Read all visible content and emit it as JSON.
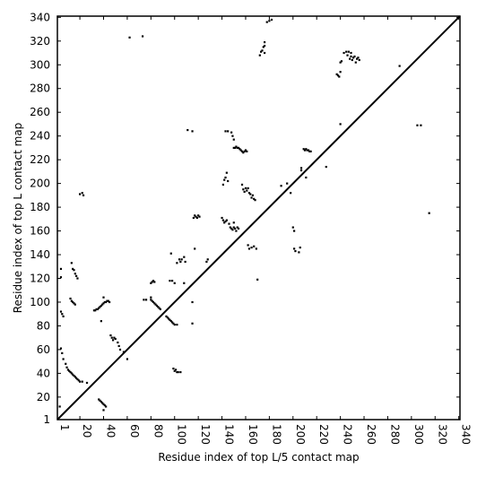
{
  "chart_data": {
    "type": "scatter",
    "title": "",
    "xlabel": "Residue index of top L/5 contact map",
    "ylabel": "Residue index of top L contact map",
    "xlim": [
      1,
      341
    ],
    "ylim": [
      1,
      341
    ],
    "x_ticks": [
      1,
      20,
      40,
      60,
      80,
      100,
      120,
      140,
      160,
      180,
      200,
      220,
      240,
      260,
      280,
      300,
      320,
      340
    ],
    "y_ticks": [
      1,
      20,
      40,
      60,
      80,
      100,
      120,
      140,
      160,
      180,
      200,
      220,
      240,
      260,
      280,
      300,
      320,
      340
    ],
    "diagonal": {
      "from": [
        1,
        1
      ],
      "to": [
        341,
        341
      ],
      "color": "#000000"
    },
    "marker_color": "#000000",
    "grid": false,
    "legend": "none",
    "series": [
      {
        "points": [
          [
            4,
            128
          ],
          [
            4,
            121
          ],
          [
            4,
            92
          ],
          [
            5,
            90
          ],
          [
            6,
            88
          ],
          [
            4,
            61
          ],
          [
            5,
            57
          ],
          [
            6,
            52
          ],
          [
            8,
            48
          ],
          [
            9,
            45
          ],
          [
            10,
            43
          ],
          [
            11,
            42
          ],
          [
            12,
            41
          ],
          [
            13,
            40
          ],
          [
            14,
            39
          ],
          [
            15,
            38
          ],
          [
            16,
            37
          ],
          [
            17,
            36
          ],
          [
            18,
            35
          ],
          [
            19,
            34
          ],
          [
            20,
            33
          ],
          [
            22,
            33
          ],
          [
            26,
            32
          ],
          [
            3,
            12
          ],
          [
            13,
            133
          ],
          [
            14,
            128
          ],
          [
            15,
            127
          ],
          [
            16,
            124
          ],
          [
            17,
            122
          ],
          [
            18,
            120
          ],
          [
            12,
            103
          ],
          [
            13,
            101
          ],
          [
            14,
            100
          ],
          [
            15,
            99
          ],
          [
            16,
            98
          ],
          [
            20,
            191
          ],
          [
            22,
            192
          ],
          [
            23,
            190
          ],
          [
            32,
            93
          ],
          [
            33,
            93
          ],
          [
            34,
            94
          ],
          [
            35,
            94
          ],
          [
            36,
            95
          ],
          [
            37,
            96
          ],
          [
            38,
            97
          ],
          [
            39,
            98
          ],
          [
            40,
            99
          ],
          [
            41,
            100
          ],
          [
            42,
            100
          ],
          [
            43,
            101
          ],
          [
            44,
            101
          ],
          [
            45,
            100
          ],
          [
            40,
            104
          ],
          [
            38,
            84
          ],
          [
            36,
            18
          ],
          [
            37,
            17
          ],
          [
            38,
            16
          ],
          [
            39,
            15
          ],
          [
            40,
            14
          ],
          [
            41,
            13
          ],
          [
            42,
            12
          ],
          [
            40,
            9
          ],
          [
            46,
            72
          ],
          [
            47,
            70
          ],
          [
            48,
            68
          ],
          [
            49,
            70
          ],
          [
            50,
            69
          ],
          [
            52,
            66
          ],
          [
            53,
            63
          ],
          [
            54,
            60
          ],
          [
            57,
            58
          ],
          [
            60,
            52
          ],
          [
            62,
            323
          ],
          [
            73,
            324
          ],
          [
            80,
            116
          ],
          [
            81,
            117
          ],
          [
            82,
            118
          ],
          [
            83,
            117
          ],
          [
            80,
            104
          ],
          [
            80,
            102
          ],
          [
            81,
            101
          ],
          [
            82,
            100
          ],
          [
            83,
            99
          ],
          [
            84,
            98
          ],
          [
            85,
            97
          ],
          [
            86,
            96
          ],
          [
            87,
            95
          ],
          [
            88,
            94
          ],
          [
            74,
            102
          ],
          [
            76,
            102
          ],
          [
            93,
            88
          ],
          [
            94,
            87
          ],
          [
            95,
            86
          ],
          [
            96,
            85
          ],
          [
            97,
            84
          ],
          [
            98,
            83
          ],
          [
            99,
            82
          ],
          [
            100,
            81
          ],
          [
            102,
            81
          ],
          [
            96,
            118
          ],
          [
            98,
            118
          ],
          [
            100,
            116
          ],
          [
            97,
            141
          ],
          [
            99,
            44
          ],
          [
            100,
            42
          ],
          [
            101,
            43
          ],
          [
            102,
            41
          ],
          [
            103,
            41
          ],
          [
            105,
            41
          ],
          [
            102,
            133
          ],
          [
            104,
            136
          ],
          [
            105,
            134
          ],
          [
            106,
            136
          ],
          [
            108,
            138
          ],
          [
            109,
            134
          ],
          [
            108,
            116
          ],
          [
            111,
            245
          ],
          [
            115,
            244
          ],
          [
            115,
            100
          ],
          [
            115,
            82
          ],
          [
            116,
            171
          ],
          [
            117,
            173
          ],
          [
            118,
            172
          ],
          [
            119,
            171
          ],
          [
            120,
            173
          ],
          [
            121,
            172
          ],
          [
            117,
            145
          ],
          [
            127,
            134
          ],
          [
            128,
            136
          ],
          [
            140,
            171
          ],
          [
            141,
            169
          ],
          [
            142,
            167
          ],
          [
            143,
            168
          ],
          [
            144,
            169
          ],
          [
            146,
            166
          ],
          [
            147,
            163
          ],
          [
            148,
            162
          ],
          [
            149,
            161
          ],
          [
            150,
            163
          ],
          [
            151,
            162
          ],
          [
            152,
            160
          ],
          [
            153,
            163
          ],
          [
            154,
            162
          ],
          [
            150,
            167
          ],
          [
            141,
            199
          ],
          [
            142,
            203
          ],
          [
            143,
            205
          ],
          [
            144,
            209
          ],
          [
            145,
            202
          ],
          [
            143,
            244
          ],
          [
            145,
            244
          ],
          [
            148,
            243
          ],
          [
            149,
            240
          ],
          [
            150,
            237
          ],
          [
            150,
            230
          ],
          [
            151,
            230
          ],
          [
            152,
            231
          ],
          [
            153,
            230
          ],
          [
            154,
            230
          ],
          [
            155,
            229
          ],
          [
            156,
            228
          ],
          [
            157,
            227
          ],
          [
            158,
            226
          ],
          [
            159,
            227
          ],
          [
            160,
            228
          ],
          [
            161,
            227
          ],
          [
            157,
            199
          ],
          [
            158,
            195
          ],
          [
            159,
            193
          ],
          [
            160,
            196
          ],
          [
            161,
            194
          ],
          [
            162,
            196
          ],
          [
            163,
            192
          ],
          [
            164,
            191
          ],
          [
            165,
            188
          ],
          [
            166,
            190
          ],
          [
            167,
            187
          ],
          [
            168,
            186
          ],
          [
            162,
            148
          ],
          [
            163,
            145
          ],
          [
            165,
            146
          ],
          [
            167,
            147
          ],
          [
            169,
            145
          ],
          [
            170,
            119
          ],
          [
            172,
            308
          ],
          [
            173,
            311
          ],
          [
            174,
            312
          ],
          [
            175,
            315
          ],
          [
            176,
            316
          ],
          [
            176,
            319
          ],
          [
            176,
            310
          ],
          [
            178,
            336
          ],
          [
            180,
            337
          ],
          [
            182,
            338
          ],
          [
            190,
            198
          ],
          [
            195,
            200
          ],
          [
            198,
            192
          ],
          [
            200,
            163
          ],
          [
            201,
            160
          ],
          [
            201,
            145
          ],
          [
            202,
            143
          ],
          [
            205,
            142
          ],
          [
            206,
            146
          ],
          [
            207,
            211
          ],
          [
            207,
            213
          ],
          [
            209,
            229
          ],
          [
            210,
            228
          ],
          [
            211,
            229
          ],
          [
            212,
            228
          ],
          [
            213,
            228
          ],
          [
            214,
            227
          ],
          [
            215,
            227
          ],
          [
            211,
            205
          ],
          [
            228,
            214
          ],
          [
            237,
            292
          ],
          [
            238,
            291
          ],
          [
            239,
            290
          ],
          [
            240,
            294
          ],
          [
            240,
            302
          ],
          [
            241,
            303
          ],
          [
            240,
            250
          ],
          [
            243,
            310
          ],
          [
            245,
            311
          ],
          [
            246,
            308
          ],
          [
            247,
            311
          ],
          [
            248,
            305
          ],
          [
            249,
            307
          ],
          [
            250,
            304
          ],
          [
            251,
            306
          ],
          [
            252,
            307
          ],
          [
            253,
            302
          ],
          [
            254,
            305
          ],
          [
            255,
            306
          ],
          [
            256,
            304
          ],
          [
            249,
            310
          ],
          [
            290,
            299
          ],
          [
            305,
            249
          ],
          [
            308,
            249
          ],
          [
            315,
            175
          ]
        ]
      }
    ]
  }
}
